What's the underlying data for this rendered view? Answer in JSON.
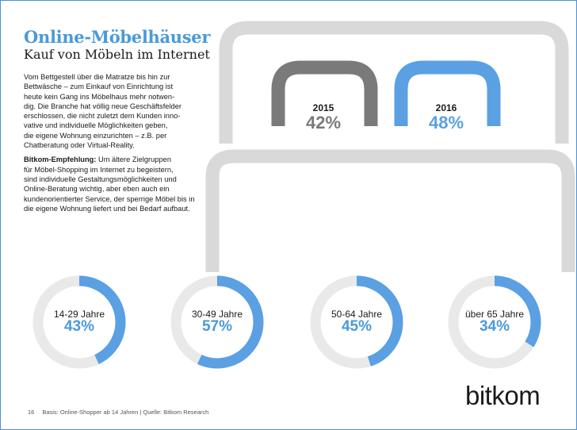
{
  "header": {
    "title": "Online-Möbelhäuser",
    "subtitle": "Kauf von Möbeln im Internet"
  },
  "body": {
    "paragraph1": "Vom Bettgestell über die Matratze bis hin zur\nBettwäsche – zum Einkauf von Einrichtung ist\nheute kein Gang ins Möbelhaus mehr notwen-\ndig. Die Branche hat völlig neue Geschäftsfelder\nerschlossen, die nicht zuletzt dem Kunden inno-\nvative und individuelle Möglichkeiten geben,\ndie eigene Wohnung einzurichten – z.B. per\nChatberatung oder Virtual-Reality.",
    "recommendation_label": "Bitkom-Empfehlung:",
    "paragraph2": " Um ältere Zielgruppen\nfür Möbel-Shopping im Internet zu begeistern,\nsind individuelle Gestaltungsmöglichkeiten und\nOnline-Beratung wichtig, aber eben auch ein\nkundenorientierter Service, der sperrige Möbel bis in\ndie eigene Wohnung liefert und bei Bedarf aufbaut."
  },
  "chart_data": [
    {
      "type": "bar",
      "categories": [
        "2015",
        "2016"
      ],
      "values": [
        42,
        48
      ],
      "value_labels": [
        "42%",
        "48%"
      ],
      "colors": [
        "#7a7a7a",
        "#5aa0e3"
      ],
      "ylim": [
        0,
        100
      ]
    },
    {
      "type": "pie",
      "categories": [
        "14-29 Jahre",
        "30-49 Jahre",
        "50-64 Jahre",
        "über 65 Jahre"
      ],
      "values": [
        43,
        57,
        45,
        34
      ],
      "value_labels": [
        "43%",
        "57%",
        "45%",
        "34%"
      ],
      "colors": {
        "fill": "#5aa0e3",
        "track": "#e9e9e9"
      }
    }
  ],
  "footer": {
    "page_number": "16",
    "source": "Basis: Online-Shopper ab 14 Jahren | Quelle: Bitkom Research"
  },
  "logo": {
    "text": "bitkom"
  },
  "colors": {
    "accent": "#4a9ad9",
    "gray": "#7a7a7a",
    "bed": "#d9d9d9"
  }
}
